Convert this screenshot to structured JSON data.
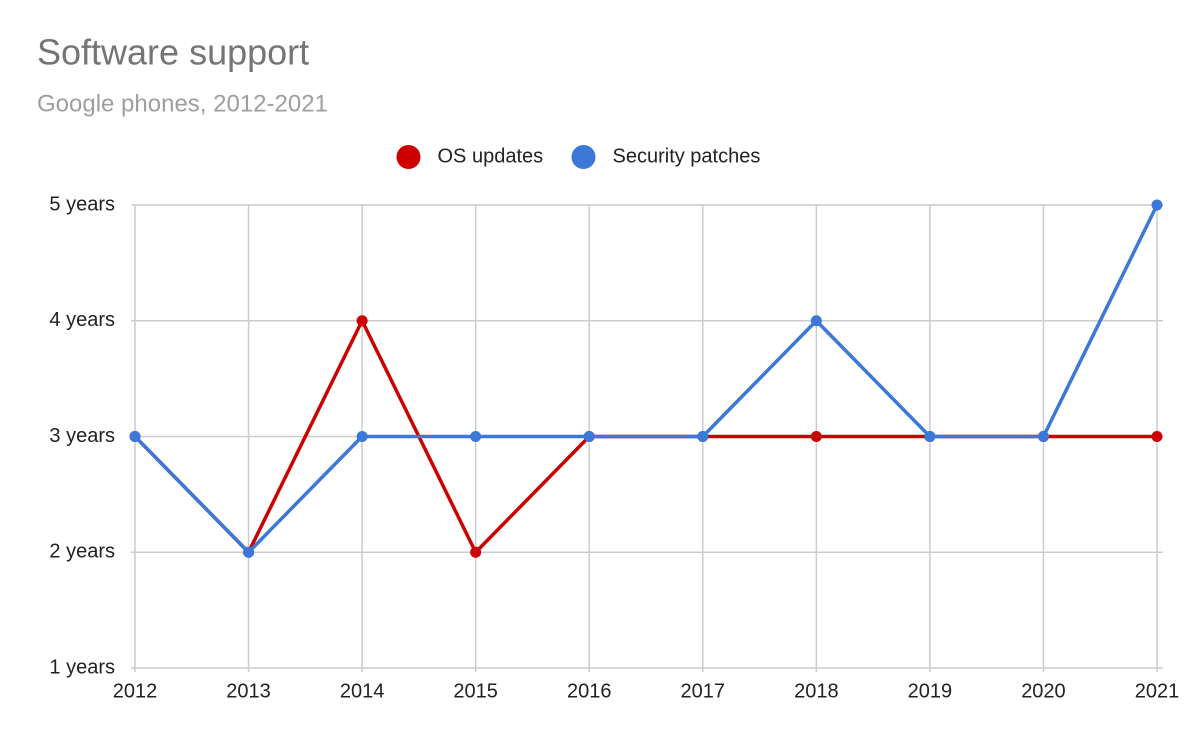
{
  "chart_data": {
    "type": "line",
    "title": "Software support",
    "subtitle": "Google phones, 2012-2021",
    "x": [
      2012,
      2013,
      2014,
      2015,
      2016,
      2017,
      2018,
      2019,
      2020,
      2021
    ],
    "xlim": [
      2012,
      2021
    ],
    "xticks": [
      2012,
      2013,
      2014,
      2015,
      2016,
      2017,
      2018,
      2019,
      2020,
      2021
    ],
    "ylim": [
      1,
      5
    ],
    "yticks": [
      {
        "value": 1,
        "label": "1 years"
      },
      {
        "value": 2,
        "label": "2 years"
      },
      {
        "value": 3,
        "label": "3 years"
      },
      {
        "value": 4,
        "label": "4 years"
      },
      {
        "value": 5,
        "label": "5 years"
      }
    ],
    "grid": true,
    "legend": "top",
    "series": [
      {
        "name": "OS updates",
        "color": "#cc0000",
        "values": [
          3,
          2,
          4,
          2,
          3,
          3,
          3,
          3,
          3,
          3
        ]
      },
      {
        "name": "Security patches",
        "color": "#3c78d8",
        "values": [
          3,
          2,
          3,
          3,
          3,
          3,
          4,
          3,
          3,
          5
        ]
      }
    ]
  }
}
